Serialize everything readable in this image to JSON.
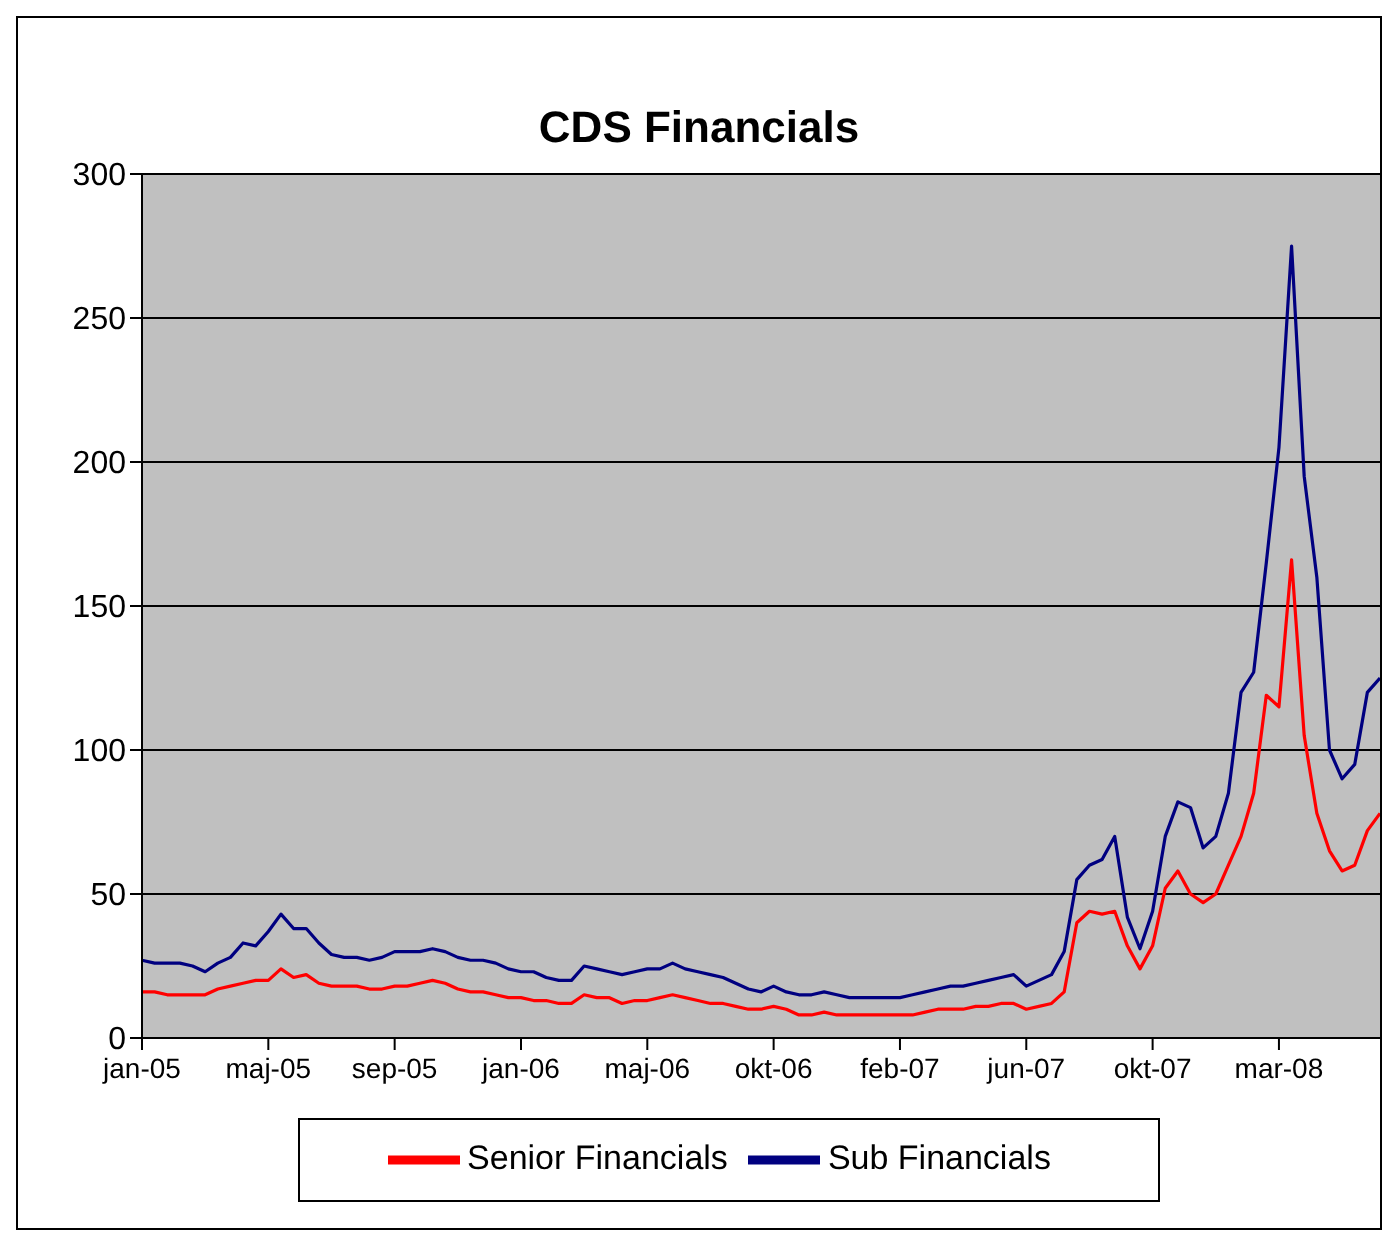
{
  "chart_data": {
    "type": "line",
    "title": "CDS Financials",
    "categories": [
      "jan-05",
      null,
      null,
      null,
      null,
      null,
      null,
      null,
      null,
      null,
      "maj-05",
      null,
      null,
      null,
      null,
      null,
      null,
      null,
      null,
      null,
      "sep-05",
      null,
      null,
      null,
      null,
      null,
      null,
      null,
      null,
      null,
      "jan-06",
      null,
      null,
      null,
      null,
      null,
      null,
      null,
      null,
      null,
      "maj-06",
      null,
      null,
      null,
      null,
      null,
      null,
      null,
      null,
      null,
      "okt-06",
      null,
      null,
      null,
      null,
      null,
      null,
      null,
      null,
      null,
      "feb-07",
      null,
      null,
      null,
      null,
      null,
      null,
      null,
      null,
      null,
      "jun-07",
      null,
      null,
      null,
      null,
      null,
      null,
      null,
      null,
      null,
      "okt-07",
      null,
      null,
      null,
      null,
      null,
      null,
      null,
      null,
      null,
      "mar-08",
      null,
      null,
      null,
      null,
      null,
      null,
      null,
      null
    ],
    "series": [
      {
        "name": "Senior Financials",
        "color": "#ff0000",
        "values": [
          16,
          16,
          15,
          15,
          15,
          15,
          17,
          18,
          19,
          20,
          20,
          24,
          21,
          22,
          19,
          18,
          18,
          18,
          17,
          17,
          18,
          18,
          19,
          20,
          19,
          17,
          16,
          16,
          15,
          14,
          14,
          13,
          13,
          12,
          12,
          15,
          14,
          14,
          12,
          13,
          13,
          14,
          15,
          14,
          13,
          12,
          12,
          11,
          10,
          10,
          11,
          10,
          8,
          8,
          9,
          8,
          8,
          8,
          8,
          8,
          8,
          8,
          9,
          10,
          10,
          10,
          11,
          11,
          12,
          12,
          10,
          11,
          12,
          16,
          40,
          44,
          43,
          44,
          32,
          24,
          32,
          52,
          58,
          50,
          47,
          50,
          60,
          70,
          85,
          119,
          115,
          166,
          105,
          78,
          65,
          58,
          60,
          72,
          78
        ]
      },
      {
        "name": "Sub Financials",
        "color": "#000080",
        "values": [
          27,
          26,
          26,
          26,
          25,
          23,
          26,
          28,
          33,
          32,
          37,
          43,
          38,
          38,
          33,
          29,
          28,
          28,
          27,
          28,
          30,
          30,
          30,
          31,
          30,
          28,
          27,
          27,
          26,
          24,
          23,
          23,
          21,
          20,
          20,
          25,
          24,
          23,
          22,
          23,
          24,
          24,
          26,
          24,
          23,
          22,
          21,
          19,
          17,
          16,
          18,
          16,
          15,
          15,
          16,
          15,
          14,
          14,
          14,
          14,
          14,
          15,
          16,
          17,
          18,
          18,
          19,
          20,
          21,
          22,
          18,
          20,
          22,
          30,
          55,
          60,
          62,
          70,
          42,
          31,
          44,
          70,
          82,
          80,
          66,
          70,
          85,
          120,
          127,
          165,
          205,
          275,
          195,
          160,
          100,
          90,
          95,
          120,
          125
        ]
      }
    ],
    "ylim": [
      0,
      300
    ],
    "yticks": [
      0,
      50,
      100,
      150,
      200,
      250,
      300
    ],
    "grid": "y",
    "legend": "bottom",
    "marker": "none",
    "line_style": "solid"
  }
}
